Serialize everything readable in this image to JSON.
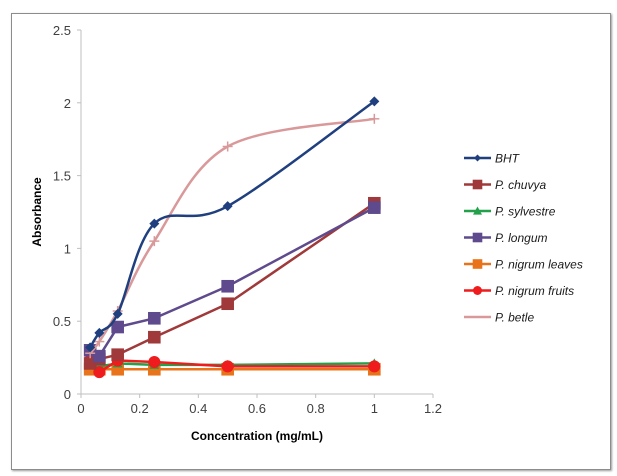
{
  "chart_data": {
    "type": "line",
    "title": "",
    "xlabel": "Concentration (mg/mL)",
    "ylabel": "Absorbance",
    "xlim": [
      0,
      1.2
    ],
    "ylim": [
      0,
      2.5
    ],
    "xticks": [
      "0",
      "0.2",
      "0.4",
      "0.6",
      "0.8",
      "1",
      "1.2"
    ],
    "xtick_values": [
      0,
      0.2,
      0.4,
      0.6,
      0.8,
      1,
      1.2
    ],
    "yticks": [
      "0",
      "0.5",
      "1",
      "1.5",
      "2",
      "2.5"
    ],
    "ytick_values": [
      0,
      0.5,
      1,
      1.5,
      2,
      2.5
    ],
    "grid": false,
    "legend_position": "right",
    "x": [
      0.03125,
      0.0625,
      0.125,
      0.25,
      0.5,
      1
    ],
    "series": [
      {
        "name": "BHT",
        "color": "#1f3f7f",
        "marker": "diamond",
        "smooth": true,
        "values": [
          0.32,
          0.42,
          0.55,
          1.17,
          1.29,
          2.01
        ]
      },
      {
        "name": "P. chuvya",
        "color": "#a0393a",
        "marker": "square",
        "smooth": false,
        "values": [
          0.21,
          0.24,
          0.27,
          0.39,
          0.62,
          1.31
        ]
      },
      {
        "name": "P. sylvestre",
        "color": "#22a04a",
        "marker": "triangle",
        "smooth": false,
        "values": [
          0.2,
          0.19,
          0.21,
          0.2,
          0.2,
          0.21
        ]
      },
      {
        "name": "P. longum",
        "color": "#5e4a8c",
        "marker": "square",
        "smooth": false,
        "values": [
          0.3,
          0.26,
          0.46,
          0.52,
          0.74,
          1.28
        ]
      },
      {
        "name": "P. nigrum leaves",
        "color": "#e8731a",
        "marker": "square",
        "smooth": false,
        "values": [
          0.17,
          0.17,
          0.17,
          0.17,
          0.17,
          0.17
        ]
      },
      {
        "name": "P. nigrum fruits",
        "color": "#ee1c1c",
        "marker": "circle",
        "smooth": false,
        "values": [
          0.23,
          0.15,
          0.23,
          0.22,
          0.19,
          0.19
        ]
      },
      {
        "name": "P. betle",
        "color": "#d9999a",
        "marker": "plus",
        "smooth": true,
        "values": [
          0.28,
          0.36,
          0.57,
          1.05,
          1.7,
          1.89
        ]
      }
    ]
  }
}
